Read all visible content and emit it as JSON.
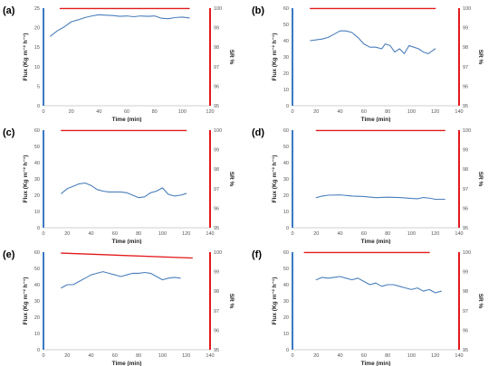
{
  "colors": {
    "flux": "#4a7ebb",
    "sr": "#e31a1c",
    "left_axis": "#3a78c2",
    "right_axis": "#e31a1c"
  },
  "chart_data": [
    {
      "panel": "(a)",
      "type": "line",
      "xlabel": "Time (min)",
      "ylabel": "Flux (Kg m⁻² h⁻¹)",
      "y2label": "SR %",
      "xlim": [
        0,
        120
      ],
      "xticks": [
        0,
        20,
        40,
        60,
        80,
        100,
        120
      ],
      "ylim": [
        0,
        25
      ],
      "yticks": [
        0,
        5,
        10,
        15,
        20,
        25
      ],
      "y2lim": [
        95,
        100
      ],
      "y2ticks": [
        95,
        96,
        97,
        98,
        99,
        100
      ],
      "series": [
        {
          "axis": "left",
          "x": [
            5,
            10,
            15,
            20,
            25,
            30,
            35,
            40,
            45,
            50,
            55,
            60,
            65,
            70,
            75,
            80,
            85,
            90,
            95,
            100,
            105
          ],
          "y": [
            17.8,
            19.2,
            20.2,
            21.5,
            22.0,
            22.6,
            23.0,
            23.3,
            23.2,
            23.1,
            22.9,
            23.0,
            22.8,
            23.0,
            22.9,
            23.0,
            22.4,
            22.3,
            22.6,
            22.7,
            22.5
          ]
        },
        {
          "axis": "right",
          "x": [
            12,
            105
          ],
          "y": [
            99.98,
            99.98
          ]
        }
      ]
    },
    {
      "panel": "(b)",
      "type": "line",
      "xlabel": "Time (min)",
      "ylabel": "Flux (Kg m⁻² h⁻¹)",
      "y2label": "SR %",
      "xlim": [
        0,
        140
      ],
      "xticks": [
        0,
        20,
        40,
        60,
        80,
        100,
        120,
        140
      ],
      "ylim": [
        0,
        60
      ],
      "yticks": [
        0,
        10,
        20,
        30,
        40,
        50,
        60
      ],
      "y2lim": [
        95,
        100
      ],
      "y2ticks": [
        95,
        96,
        97,
        98,
        99,
        100
      ],
      "series": [
        {
          "axis": "left",
          "x": [
            15,
            20,
            25,
            30,
            35,
            40,
            45,
            50,
            55,
            60,
            65,
            70,
            75,
            78,
            82,
            86,
            90,
            94,
            98,
            102,
            106,
            110,
            114,
            118,
            120
          ],
          "y": [
            40,
            40.5,
            41,
            42,
            44,
            46,
            46,
            45,
            42,
            38,
            36,
            36,
            35,
            38,
            37,
            33,
            35,
            32,
            37,
            36,
            35,
            33,
            32,
            34,
            35
          ]
        },
        {
          "axis": "right",
          "x": [
            15,
            120
          ],
          "y": [
            99.98,
            99.98
          ]
        }
      ]
    },
    {
      "panel": "(c)",
      "type": "line",
      "xlabel": "Time (min)",
      "ylabel": "Flux (Kg m⁻² h⁻¹)",
      "y2label": "SR %",
      "xlim": [
        0,
        140
      ],
      "xticks": [
        0,
        20,
        40,
        60,
        80,
        100,
        120,
        140
      ],
      "ylim": [
        0,
        60
      ],
      "yticks": [
        0,
        10,
        20,
        30,
        40,
        50,
        60
      ],
      "y2lim": [
        95,
        100
      ],
      "y2ticks": [
        95,
        96,
        97,
        98,
        99,
        100
      ],
      "series": [
        {
          "axis": "left",
          "x": [
            15,
            20,
            25,
            30,
            35,
            40,
            45,
            50,
            55,
            60,
            65,
            70,
            75,
            80,
            85,
            90,
            95,
            100,
            105,
            110,
            115,
            120
          ],
          "y": [
            21,
            24,
            25.5,
            27,
            27.5,
            26,
            23.5,
            22.5,
            22,
            22,
            22,
            21.5,
            20,
            18.5,
            19,
            21.5,
            22.5,
            24.5,
            20.5,
            19.5,
            20,
            21
          ]
        },
        {
          "axis": "right",
          "x": [
            15,
            120
          ],
          "y": [
            99.98,
            99.98
          ]
        }
      ]
    },
    {
      "panel": "(d)",
      "type": "line",
      "xlabel": "Time (min)",
      "ylabel": "Flux (Kg m⁻² h⁻¹)",
      "y2label": "SR %",
      "xlim": [
        0,
        140
      ],
      "xticks": [
        0,
        20,
        40,
        60,
        80,
        100,
        120,
        140
      ],
      "ylim": [
        0,
        60
      ],
      "yticks": [
        0,
        10,
        20,
        30,
        40,
        50,
        60
      ],
      "y2lim": [
        95,
        100
      ],
      "y2ticks": [
        95,
        96,
        97,
        98,
        99,
        100
      ],
      "series": [
        {
          "axis": "left",
          "x": [
            20,
            25,
            30,
            40,
            50,
            60,
            70,
            80,
            90,
            100,
            105,
            110,
            115,
            120,
            128
          ],
          "y": [
            18.5,
            19.5,
            20,
            20.2,
            19.5,
            19.2,
            18.5,
            18.8,
            18.6,
            18,
            17.8,
            18.6,
            18.2,
            17.5,
            17.5
          ]
        },
        {
          "axis": "right",
          "x": [
            20,
            128
          ],
          "y": [
            99.98,
            99.98
          ]
        }
      ]
    },
    {
      "panel": "(e)",
      "type": "line",
      "xlabel": "Time (min)",
      "ylabel": "Flux (Kg m⁻² h⁻¹)",
      "y2label": "SR %",
      "xlim": [
        0,
        140
      ],
      "xticks": [
        0,
        20,
        40,
        60,
        80,
        100,
        120,
        140
      ],
      "ylim": [
        0,
        60
      ],
      "yticks": [
        0,
        10,
        20,
        30,
        40,
        50,
        60
      ],
      "y2lim": [
        95,
        100
      ],
      "y2ticks": [
        95,
        96,
        97,
        98,
        99,
        100
      ],
      "series": [
        {
          "axis": "left",
          "x": [
            15,
            20,
            25,
            30,
            35,
            40,
            45,
            50,
            55,
            60,
            65,
            70,
            75,
            80,
            85,
            90,
            95,
            100,
            105,
            110,
            115
          ],
          "y": [
            38,
            40,
            40,
            42,
            44,
            46,
            47,
            48,
            47,
            46,
            45,
            46,
            47,
            47,
            47.5,
            47,
            45,
            43,
            44,
            44.5,
            44
          ]
        },
        {
          "axis": "right",
          "x": [
            15,
            125
          ],
          "y": [
            99.95,
            99.7
          ]
        }
      ]
    },
    {
      "panel": "(f)",
      "type": "line",
      "xlabel": "Time (min)",
      "ylabel": "Flux (Kg m⁻² h⁻¹)",
      "y2label": "SR %",
      "xlim": [
        0,
        140
      ],
      "xticks": [
        0,
        20,
        40,
        60,
        80,
        100,
        120,
        140
      ],
      "ylim": [
        0,
        60
      ],
      "yticks": [
        0,
        10,
        20,
        30,
        40,
        50,
        60
      ],
      "y2lim": [
        95,
        100
      ],
      "y2ticks": [
        95,
        96,
        97,
        98,
        99,
        100
      ],
      "series": [
        {
          "axis": "left",
          "x": [
            20,
            25,
            30,
            35,
            40,
            45,
            50,
            55,
            60,
            65,
            70,
            75,
            80,
            85,
            90,
            95,
            100,
            105,
            110,
            115,
            120,
            125
          ],
          "y": [
            43,
            44.5,
            44,
            44.5,
            45,
            44,
            43,
            44,
            42,
            40,
            41,
            39,
            40,
            40,
            39,
            38,
            37,
            38,
            36,
            37,
            35,
            36
          ]
        },
        {
          "axis": "right",
          "x": [
            10,
            115
          ],
          "y": [
            99.98,
            99.98
          ]
        }
      ]
    }
  ]
}
